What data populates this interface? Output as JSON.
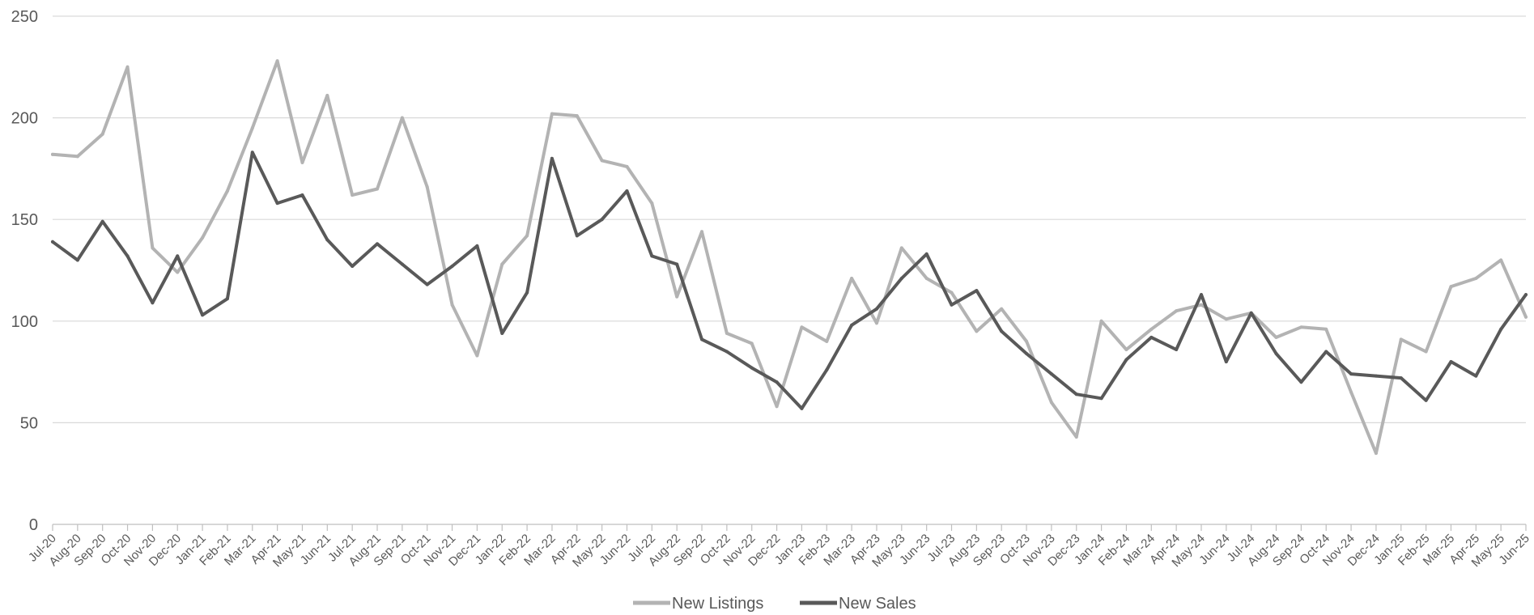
{
  "chart_data": {
    "type": "line",
    "title": "",
    "xlabel": "",
    "ylabel": "",
    "ylim": [
      0,
      250
    ],
    "yticks": [
      0,
      50,
      100,
      150,
      200,
      250
    ],
    "grid": true,
    "legend_position": "bottom",
    "categories": [
      "Jul-20",
      "Aug-20",
      "Sep-20",
      "Oct-20",
      "Nov-20",
      "Dec-20",
      "Jan-21",
      "Feb-21",
      "Mar-21",
      "Apr-21",
      "May-21",
      "Jun-21",
      "Jul-21",
      "Aug-21",
      "Sep-21",
      "Oct-21",
      "Nov-21",
      "Dec-21",
      "Jan-22",
      "Feb-22",
      "Mar-22",
      "Apr-22",
      "May-22",
      "Jun-22",
      "Jul-22",
      "Aug-22",
      "Sep-22",
      "Oct-22",
      "Nov-22",
      "Dec-22",
      "Jan-23",
      "Feb-23",
      "Mar-23",
      "Apr-23",
      "May-23",
      "Jun-23",
      "Jul-23",
      "Aug-23",
      "Sep-23",
      "Oct-23",
      "Nov-23",
      "Dec-23",
      "Jan-24",
      "Feb-24",
      "Mar-24",
      "Apr-24",
      "May-24",
      "Jun-24",
      "Jul-24",
      "Aug-24",
      "Sep-24",
      "Oct-24",
      "Nov-24",
      "Dec-24",
      "Jan-25",
      "Feb-25",
      "Mar-25",
      "Apr-25",
      "May-25",
      "Jun-25"
    ],
    "series": [
      {
        "name": "New Listings",
        "color": "#b3b3b3",
        "values": [
          182,
          181,
          192,
          225,
          136,
          124,
          141,
          164,
          195,
          228,
          178,
          211,
          162,
          165,
          200,
          166,
          108,
          83,
          128,
          142,
          202,
          201,
          179,
          176,
          158,
          112,
          144,
          94,
          89,
          58,
          97,
          90,
          121,
          99,
          136,
          121,
          114,
          95,
          106,
          90,
          60,
          43,
          100,
          86,
          96,
          105,
          108,
          101,
          104,
          92,
          97,
          96,
          65,
          35,
          91,
          85,
          117,
          121,
          130,
          102
        ]
      },
      {
        "name": "New Sales",
        "color": "#595959",
        "values": [
          139,
          130,
          149,
          132,
          109,
          132,
          103,
          111,
          183,
          158,
          162,
          140,
          127,
          138,
          128,
          118,
          127,
          137,
          94,
          114,
          180,
          142,
          150,
          164,
          132,
          128,
          91,
          85,
          77,
          70,
          57,
          76,
          98,
          106,
          121,
          133,
          108,
          115,
          95,
          84,
          74,
          64,
          62,
          81,
          92,
          86,
          113,
          80,
          104,
          84,
          70,
          85,
          74,
          73,
          72,
          61,
          80,
          73,
          96,
          113
        ]
      }
    ]
  }
}
